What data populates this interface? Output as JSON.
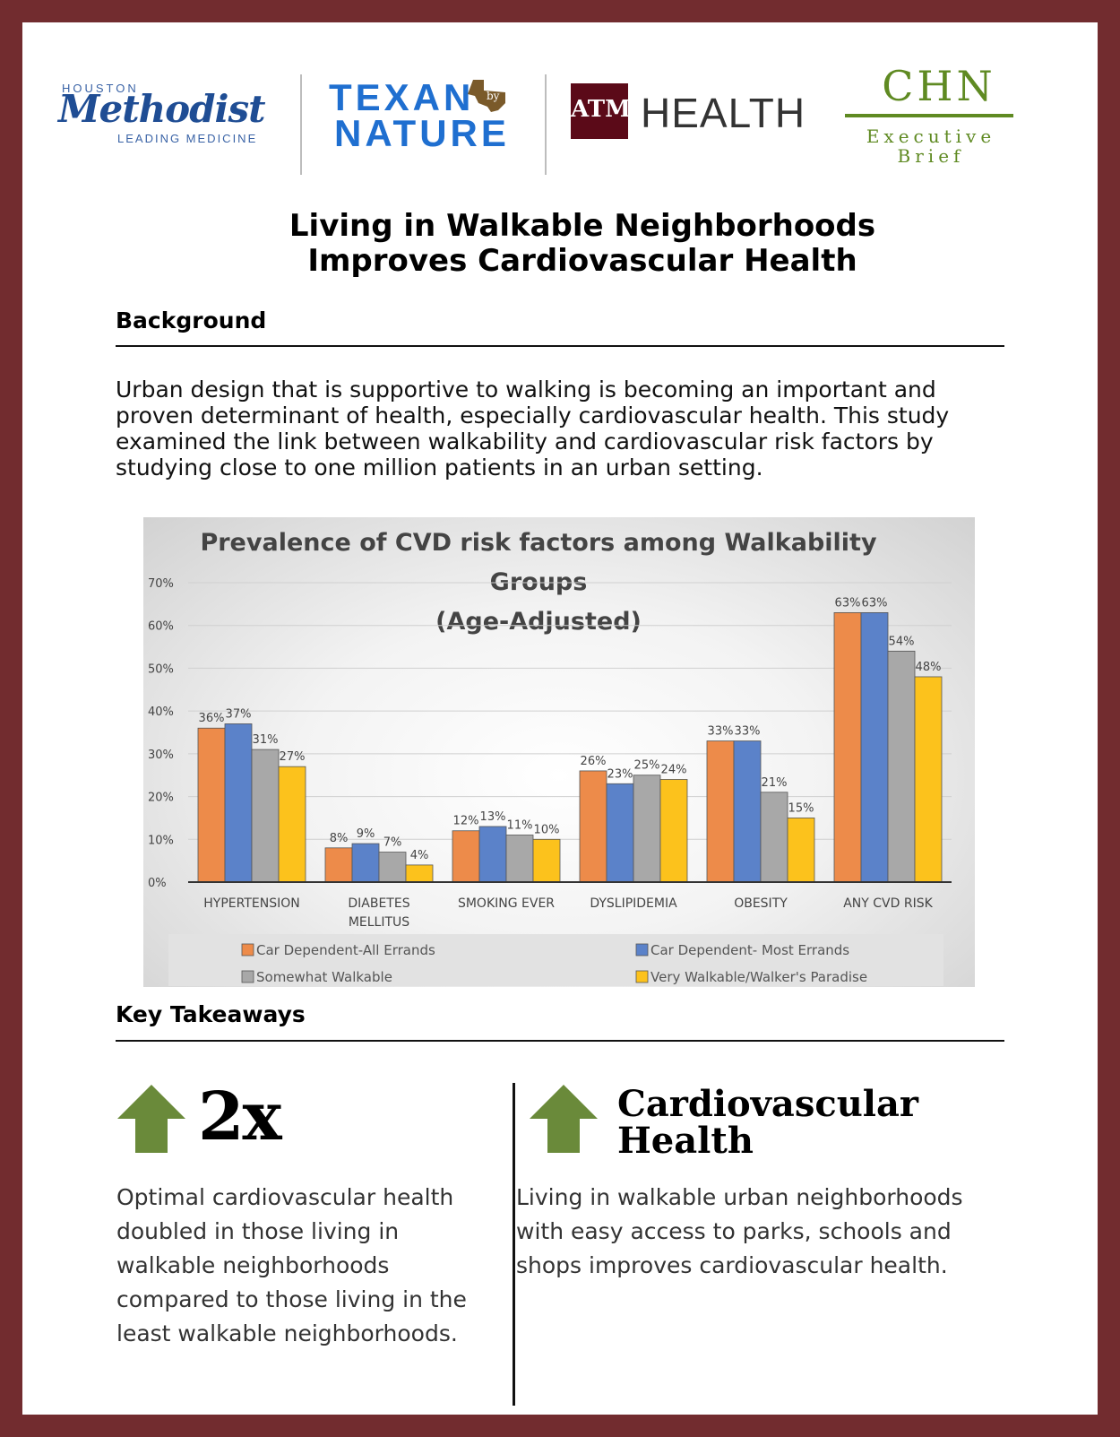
{
  "logos": {
    "methodist_houston": "HOUSTON",
    "methodist_name": "Methodist",
    "methodist_tagline": "LEADING MEDICINE",
    "texan_line1": "TEXAN",
    "texan_line2": "NATURE",
    "texan_badge": "by",
    "tamu_mark": "ATM",
    "tamu_health": "HEALTH",
    "chn": "CHN",
    "chn_sub1": "Executive",
    "chn_sub2": "Brief"
  },
  "title_lines": [
    "Living in Walkable Neighborhoods",
    "Improves Cardiovascular Health"
  ],
  "background": {
    "heading": "Background",
    "lines": [
      "Urban design that is supportive to walking is becoming an important and",
      "proven determinant of health, especially cardiovascular health. This study",
      "examined the link between walkability and cardiovascular risk factors by",
      "studying close to one million patients in an urban setting."
    ]
  },
  "chart_data": {
    "type": "bar",
    "title_lines": [
      "Prevalence of CVD risk factors among Walkability",
      "Groups",
      "(Age-Adjusted)"
    ],
    "categories": [
      [
        "HYPERTENSION"
      ],
      [
        "DIABETES",
        "MELLITUS"
      ],
      [
        "SMOKING EVER"
      ],
      [
        "DYSLIPIDEMIA"
      ],
      [
        "OBESITY"
      ],
      [
        "ANY CVD RISK"
      ]
    ],
    "series": [
      {
        "name": "Car Dependent-All Errands",
        "color": "#ed8b4a",
        "values": [
          36,
          8,
          12,
          26,
          33,
          63
        ]
      },
      {
        "name": "Car Dependent- Most Errands",
        "color": "#5b82c9",
        "values": [
          37,
          9,
          13,
          23,
          33,
          63
        ]
      },
      {
        "name": "Somewhat Walkable",
        "color": "#a8a8a8",
        "values": [
          31,
          7,
          11,
          25,
          21,
          54
        ]
      },
      {
        "name": "Very Walkable/Walker's Paradise",
        "color": "#fcc21c",
        "values": [
          27,
          4,
          10,
          24,
          15,
          48
        ]
      }
    ],
    "ylim": [
      0,
      70
    ],
    "yticks": [
      "0%",
      "10%",
      "20%",
      "30%",
      "40%",
      "50%",
      "60%",
      "70%"
    ],
    "value_suffix": "%",
    "grid": true,
    "legend_placement": "bottom"
  },
  "takeaways": {
    "heading": "Key Takeaways",
    "left": {
      "headline": "2x",
      "lines": [
        "Optimal cardiovascular health",
        "doubled in those living in",
        "walkable neighborhoods",
        "compared to those living in the",
        "least walkable neighborhoods."
      ]
    },
    "right": {
      "headline_lines": [
        "Cardiovascular",
        "Health"
      ],
      "lines": [
        "Living in walkable urban neighborhoods",
        "with easy access to parks, schools and",
        "shops improves cardiovascular health."
      ]
    },
    "arrow_color": "#6a8a3a"
  }
}
